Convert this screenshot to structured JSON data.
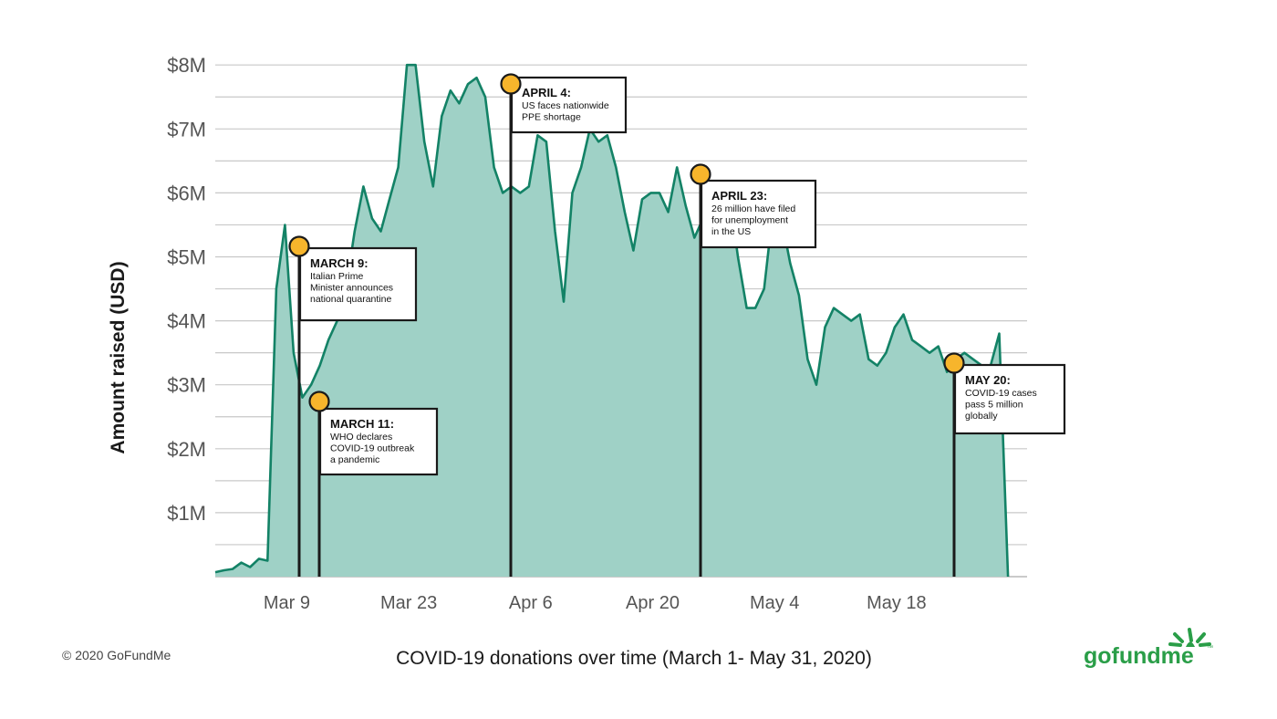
{
  "chart_data": {
    "type": "area",
    "title": "COVID-19 donations over time (March 1- May 31, 2020)",
    "ylabel": "Amount raised (USD)",
    "xlabel": "",
    "y_unit": "million USD",
    "ylim": [
      0,
      8.3
    ],
    "grid": "horizontal",
    "x_tick_labels": [
      "Mar 9",
      "Mar 23",
      "Apr 6",
      "Apr 20",
      "May 4",
      "May 18"
    ],
    "x_tick_dates": [
      "2020-03-09",
      "2020-03-23",
      "2020-04-06",
      "2020-04-20",
      "2020-05-04",
      "2020-05-18"
    ],
    "y_tick_labels": [
      "$1M",
      "$2M",
      "$3M",
      "$4M",
      "$5M",
      "$6M",
      "$7M",
      "$8M"
    ],
    "y_tick_values": [
      1,
      2,
      3,
      4,
      5,
      6,
      7,
      8
    ],
    "colors": {
      "fill": "#9fd1c6",
      "line": "#138266",
      "grid": "#c8c8c8",
      "marker": "#f7b52c"
    },
    "x": [
      "2020-03-01",
      "2020-03-02",
      "2020-03-03",
      "2020-03-04",
      "2020-03-05",
      "2020-03-06",
      "2020-03-07",
      "2020-03-08",
      "2020-03-09",
      "2020-03-10",
      "2020-03-11",
      "2020-03-12",
      "2020-03-13",
      "2020-03-14",
      "2020-03-15",
      "2020-03-16",
      "2020-03-17",
      "2020-03-18",
      "2020-03-19",
      "2020-03-20",
      "2020-03-21",
      "2020-03-22",
      "2020-03-23",
      "2020-03-24",
      "2020-03-25",
      "2020-03-26",
      "2020-03-27",
      "2020-03-28",
      "2020-03-29",
      "2020-03-30",
      "2020-03-31",
      "2020-04-01",
      "2020-04-02",
      "2020-04-03",
      "2020-04-04",
      "2020-04-05",
      "2020-04-06",
      "2020-04-07",
      "2020-04-08",
      "2020-04-09",
      "2020-04-10",
      "2020-04-11",
      "2020-04-12",
      "2020-04-13",
      "2020-04-14",
      "2020-04-15",
      "2020-04-16",
      "2020-04-17",
      "2020-04-18",
      "2020-04-19",
      "2020-04-20",
      "2020-04-21",
      "2020-04-22",
      "2020-04-23",
      "2020-04-24",
      "2020-04-25",
      "2020-04-26",
      "2020-04-27",
      "2020-04-28",
      "2020-04-29",
      "2020-04-30",
      "2020-05-01",
      "2020-05-02",
      "2020-05-03",
      "2020-05-04",
      "2020-05-05",
      "2020-05-06",
      "2020-05-07",
      "2020-05-08",
      "2020-05-09",
      "2020-05-10",
      "2020-05-11",
      "2020-05-12",
      "2020-05-13",
      "2020-05-14",
      "2020-05-15",
      "2020-05-16",
      "2020-05-17",
      "2020-05-18",
      "2020-05-19",
      "2020-05-20",
      "2020-05-21",
      "2020-05-22",
      "2020-05-23",
      "2020-05-24",
      "2020-05-25",
      "2020-05-26",
      "2020-05-27",
      "2020-05-28",
      "2020-05-29",
      "2020-05-30",
      "2020-05-31"
    ],
    "series": [
      {
        "values": [
          0.07,
          0.1,
          0.12,
          0.22,
          0.15,
          0.28,
          0.25,
          4.5,
          5.5,
          3.5,
          2.8,
          3.0,
          3.3,
          3.7,
          4.0,
          4.5,
          5.4,
          6.1,
          5.6,
          5.4,
          5.9,
          6.4,
          8.0,
          8.0,
          6.8,
          6.1,
          7.2,
          7.6,
          7.4,
          7.7,
          7.8,
          7.5,
          6.4,
          6.0,
          6.1,
          6.0,
          6.1,
          6.9,
          6.8,
          5.4,
          4.3,
          6.0,
          6.4,
          7.0,
          6.8,
          6.9,
          6.4,
          5.7,
          5.1,
          5.9,
          6.0,
          6.0,
          5.7,
          6.4,
          5.8,
          5.3,
          5.6,
          5.7,
          5.5,
          6.0,
          5.0,
          4.2,
          4.2,
          4.5,
          5.7,
          5.6,
          4.9,
          4.4,
          3.4,
          3.0,
          3.9,
          4.2,
          4.1,
          4.0,
          4.1,
          3.4,
          3.3,
          3.5,
          3.9,
          4.1,
          3.7,
          3.6,
          3.5,
          3.6,
          3.2,
          3.4,
          3.5,
          3.4,
          3.3,
          3.3,
          3.8,
          0.0
        ]
      }
    ],
    "annotations": [
      {
        "date": "2020-03-09",
        "title": "MARCH 9:",
        "lines": [
          "Italian Prime",
          "Minister announces",
          "national quarantine"
        ]
      },
      {
        "date": "2020-03-11",
        "title": "MARCH 11:",
        "lines": [
          "WHO declares",
          "COVID-19 outbreak",
          "a pandemic"
        ]
      },
      {
        "date": "2020-04-04",
        "title": "APRIL 4:",
        "lines": [
          "US faces nationwide",
          "PPE shortage"
        ]
      },
      {
        "date": "2020-04-23",
        "title": "APRIL 23:",
        "lines": [
          "26 million have filed",
          "for unemployment",
          "in the US"
        ]
      },
      {
        "date": "2020-05-20",
        "title": "MAY 20:",
        "lines": [
          "COVID-19 cases",
          "pass 5 million",
          "globally"
        ]
      }
    ]
  },
  "footer": {
    "copyright": "© 2020 GoFundMe",
    "logo_text": "gofundme",
    "logo_tm": "™",
    "logo_color": "#2a9e48"
  }
}
